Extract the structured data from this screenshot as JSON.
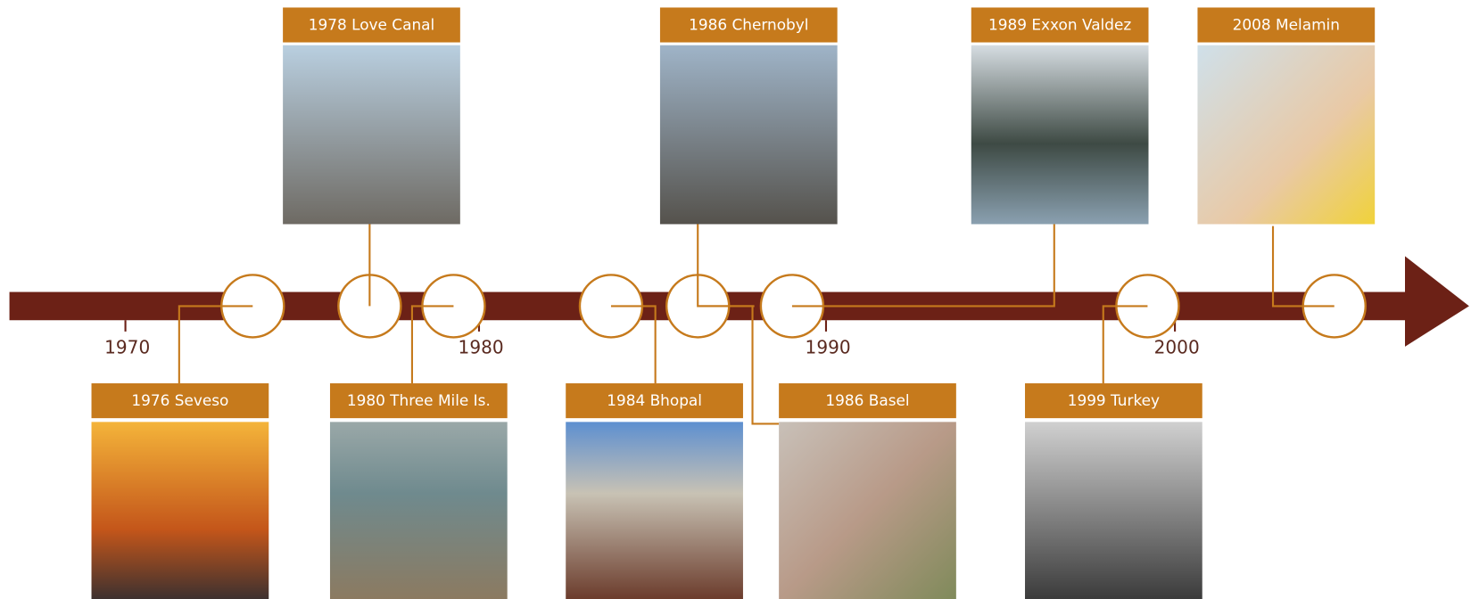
{
  "axis_labels": [
    "1970",
    "1980",
    "1990",
    "2000"
  ],
  "events": [
    {
      "label": "1978 Love Canal"
    },
    {
      "label": "1986 Chernobyl"
    },
    {
      "label": "1989 Exxon Valdez"
    },
    {
      "label": "2008 Melamin"
    },
    {
      "label": "1976 Seveso"
    },
    {
      "label": "1980 Three Mile Is."
    },
    {
      "label": "1984 Bhopal"
    },
    {
      "label": "1986 Basel"
    },
    {
      "label": "1999 Turkey"
    }
  ]
}
